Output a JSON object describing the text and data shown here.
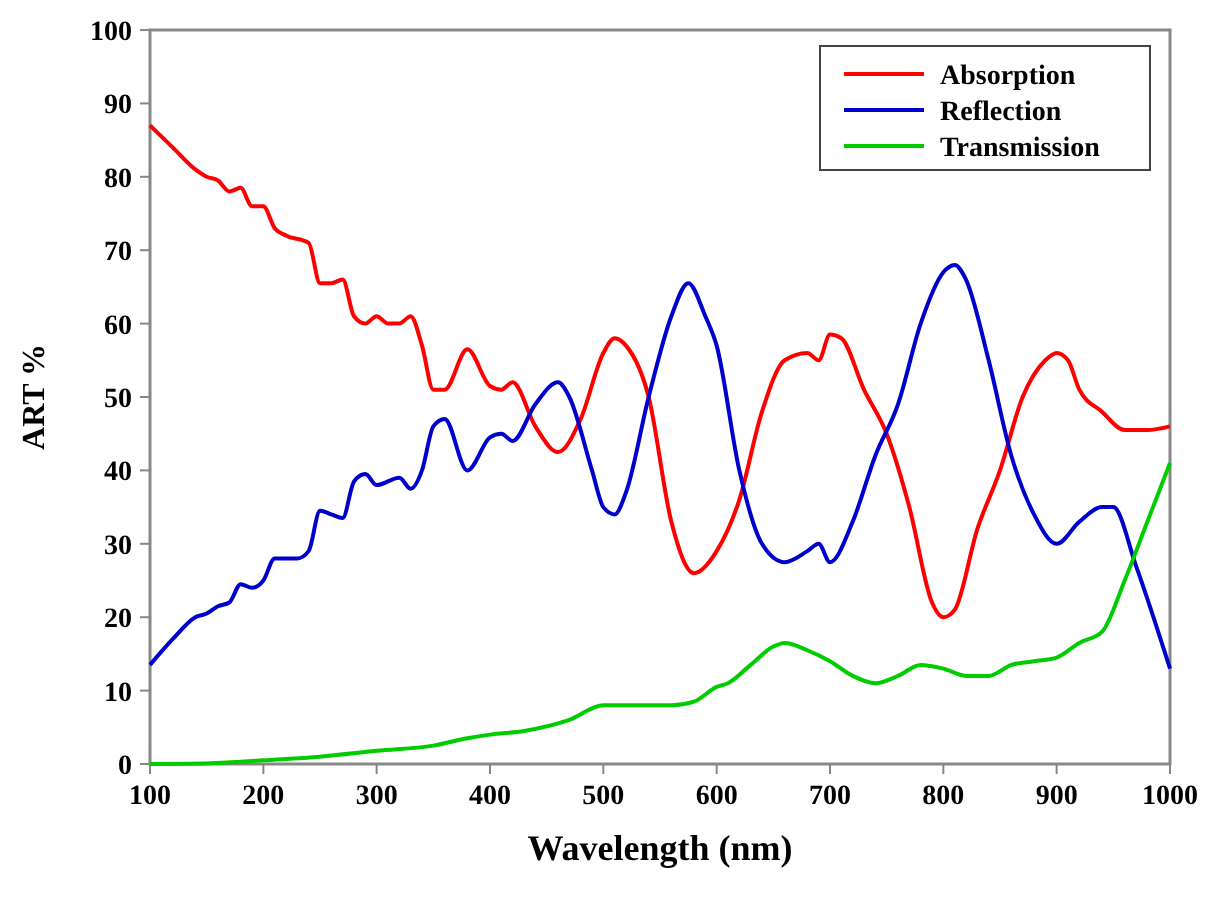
{
  "chart_data": {
    "type": "line",
    "xlabel": "Wavelength (nm)",
    "ylabel": "ART %",
    "xlim": [
      100,
      1000
    ],
    "ylim": [
      0,
      100
    ],
    "xticks": [
      100,
      200,
      300,
      400,
      500,
      600,
      700,
      800,
      900,
      1000
    ],
    "yticks": [
      0,
      10,
      20,
      30,
      40,
      50,
      60,
      70,
      80,
      90,
      100
    ],
    "grid": false,
    "legend": "top right",
    "line_style": "solid",
    "marker": "none",
    "series": [
      {
        "name": "Absorption",
        "color": "#ff0000",
        "x": [
          100,
          120,
          140,
          150,
          160,
          170,
          180,
          190,
          200,
          210,
          220,
          240,
          250,
          260,
          270,
          280,
          290,
          300,
          310,
          320,
          330,
          340,
          350,
          360,
          380,
          400,
          410,
          420,
          440,
          460,
          480,
          500,
          510,
          520,
          540,
          560,
          580,
          600,
          620,
          640,
          660,
          680,
          690,
          700,
          710,
          730,
          750,
          770,
          790,
          800,
          810,
          830,
          850,
          870,
          890,
          900,
          910,
          920,
          940,
          960,
          980,
          1000
        ],
        "values": [
          87,
          84,
          81,
          80,
          79.5,
          78,
          78.5,
          76,
          76,
          73,
          72,
          71,
          65.5,
          65.5,
          66,
          61,
          60,
          61,
          60,
          60,
          61,
          57,
          51,
          51,
          56.5,
          51.5,
          51,
          52,
          46,
          42.5,
          47,
          56,
          58,
          57,
          50,
          33,
          26,
          29,
          36,
          48,
          55,
          56,
          55,
          58.5,
          58,
          51,
          45,
          35,
          22,
          20,
          21,
          32,
          40,
          50,
          55,
          56,
          55,
          51,
          48,
          45.5,
          45.5,
          46
        ]
      },
      {
        "name": "Reflection",
        "color": "#0000cc",
        "x": [
          100,
          120,
          140,
          150,
          160,
          170,
          180,
          190,
          200,
          210,
          230,
          240,
          250,
          260,
          270,
          280,
          290,
          300,
          320,
          330,
          340,
          350,
          360,
          380,
          400,
          410,
          420,
          440,
          460,
          470,
          490,
          500,
          510,
          520,
          540,
          560,
          575,
          590,
          600,
          620,
          640,
          660,
          680,
          690,
          700,
          720,
          740,
          760,
          780,
          800,
          810,
          820,
          840,
          860,
          880,
          900,
          920,
          940,
          950,
          970,
          1000
        ],
        "values": [
          13.5,
          17,
          20,
          20.5,
          21.5,
          22,
          24.5,
          24,
          25,
          28,
          28,
          29,
          34.5,
          34,
          33.5,
          38.5,
          39.5,
          38,
          39,
          37.5,
          40,
          46,
          47,
          40,
          44.5,
          45,
          44,
          49,
          52,
          50,
          40,
          35,
          34,
          37,
          50,
          61,
          65.5,
          61,
          57,
          40,
          30,
          27.5,
          29,
          30,
          27.5,
          33,
          42,
          49,
          60,
          67,
          68,
          66,
          55,
          42,
          34,
          30,
          33,
          35,
          35,
          27,
          13
        ]
      },
      {
        "name": "Transmission",
        "color": "#00cc00",
        "x": [
          100,
          120,
          180,
          200,
          250,
          300,
          350,
          380,
          400,
          430,
          470,
          500,
          540,
          560,
          580,
          600,
          610,
          630,
          650,
          660,
          680,
          700,
          720,
          740,
          760,
          780,
          800,
          820,
          840,
          860,
          880,
          900,
          920,
          940,
          960,
          980,
          1000
        ],
        "values": [
          0,
          0,
          0.3,
          0.5,
          1,
          1.8,
          2.5,
          3.5,
          4,
          4.5,
          6,
          8,
          8,
          8,
          8.5,
          10.5,
          11,
          13.5,
          16,
          16.5,
          15.5,
          14,
          12,
          11,
          12,
          13.5,
          13,
          12,
          12,
          13.5,
          14,
          14.5,
          16.5,
          18,
          25,
          33,
          41
        ]
      }
    ]
  }
}
